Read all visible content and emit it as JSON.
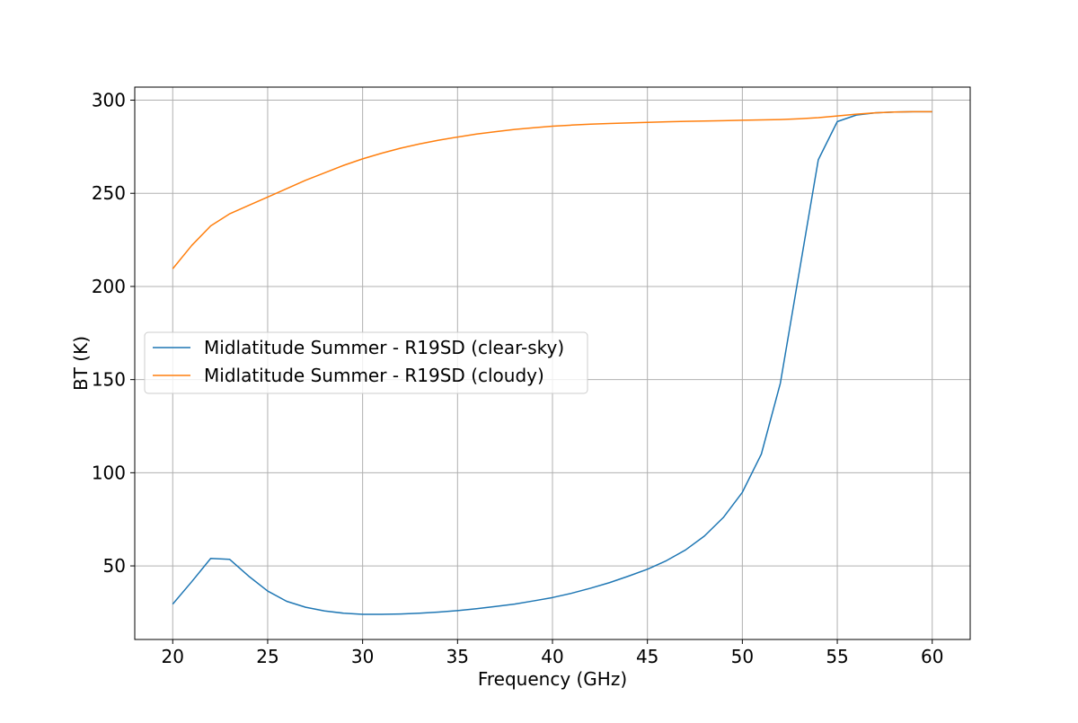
{
  "chart_data": {
    "type": "line",
    "title": "",
    "xlabel": "Frequency (GHz)",
    "ylabel": "BT (K)",
    "xlim": [
      18,
      62
    ],
    "ylim": [
      10.5,
      307
    ],
    "xticks": [
      20,
      25,
      30,
      35,
      40,
      45,
      50,
      55,
      60
    ],
    "yticks": [
      50,
      100,
      150,
      200,
      250,
      300
    ],
    "grid": true,
    "legend_position": "center-left",
    "x": [
      20,
      21,
      22,
      23,
      24,
      25,
      26,
      27,
      28,
      29,
      30,
      31,
      32,
      33,
      34,
      35,
      36,
      37,
      38,
      39,
      40,
      41,
      42,
      43,
      44,
      45,
      46,
      47,
      48,
      49,
      50,
      51,
      52,
      53,
      54,
      55,
      56,
      57,
      58,
      59,
      60
    ],
    "series": [
      {
        "name": "Midlatitude Summer - R19SD (clear-sky)",
        "color": "#1f77b4",
        "values": [
          29.5,
          41.5,
          54.0,
          53.5,
          44.5,
          36.5,
          31.0,
          27.8,
          25.8,
          24.6,
          24.0,
          24.0,
          24.2,
          24.6,
          25.2,
          26.0,
          27.0,
          28.2,
          29.5,
          31.2,
          33.0,
          35.3,
          38.0,
          41.0,
          44.5,
          48.2,
          52.8,
          58.5,
          66.0,
          76.0,
          89.5,
          110.0,
          148.0,
          208.0,
          268.0,
          288.5,
          292.0,
          293.2,
          293.6,
          293.8,
          293.8
        ]
      },
      {
        "name": "Midlatitude Summer - R19SD (cloudy)",
        "color": "#ff7f0e",
        "values": [
          209.5,
          222.0,
          232.5,
          239.0,
          243.5,
          248.0,
          252.5,
          257.0,
          261.0,
          265.0,
          268.5,
          271.5,
          274.2,
          276.5,
          278.5,
          280.2,
          281.8,
          283.1,
          284.3,
          285.2,
          286.0,
          286.6,
          287.1,
          287.5,
          287.8,
          288.1,
          288.4,
          288.6,
          288.8,
          289.0,
          289.2,
          289.4,
          289.6,
          290.0,
          290.6,
          291.5,
          292.5,
          293.2,
          293.6,
          293.8,
          293.8
        ]
      }
    ]
  }
}
